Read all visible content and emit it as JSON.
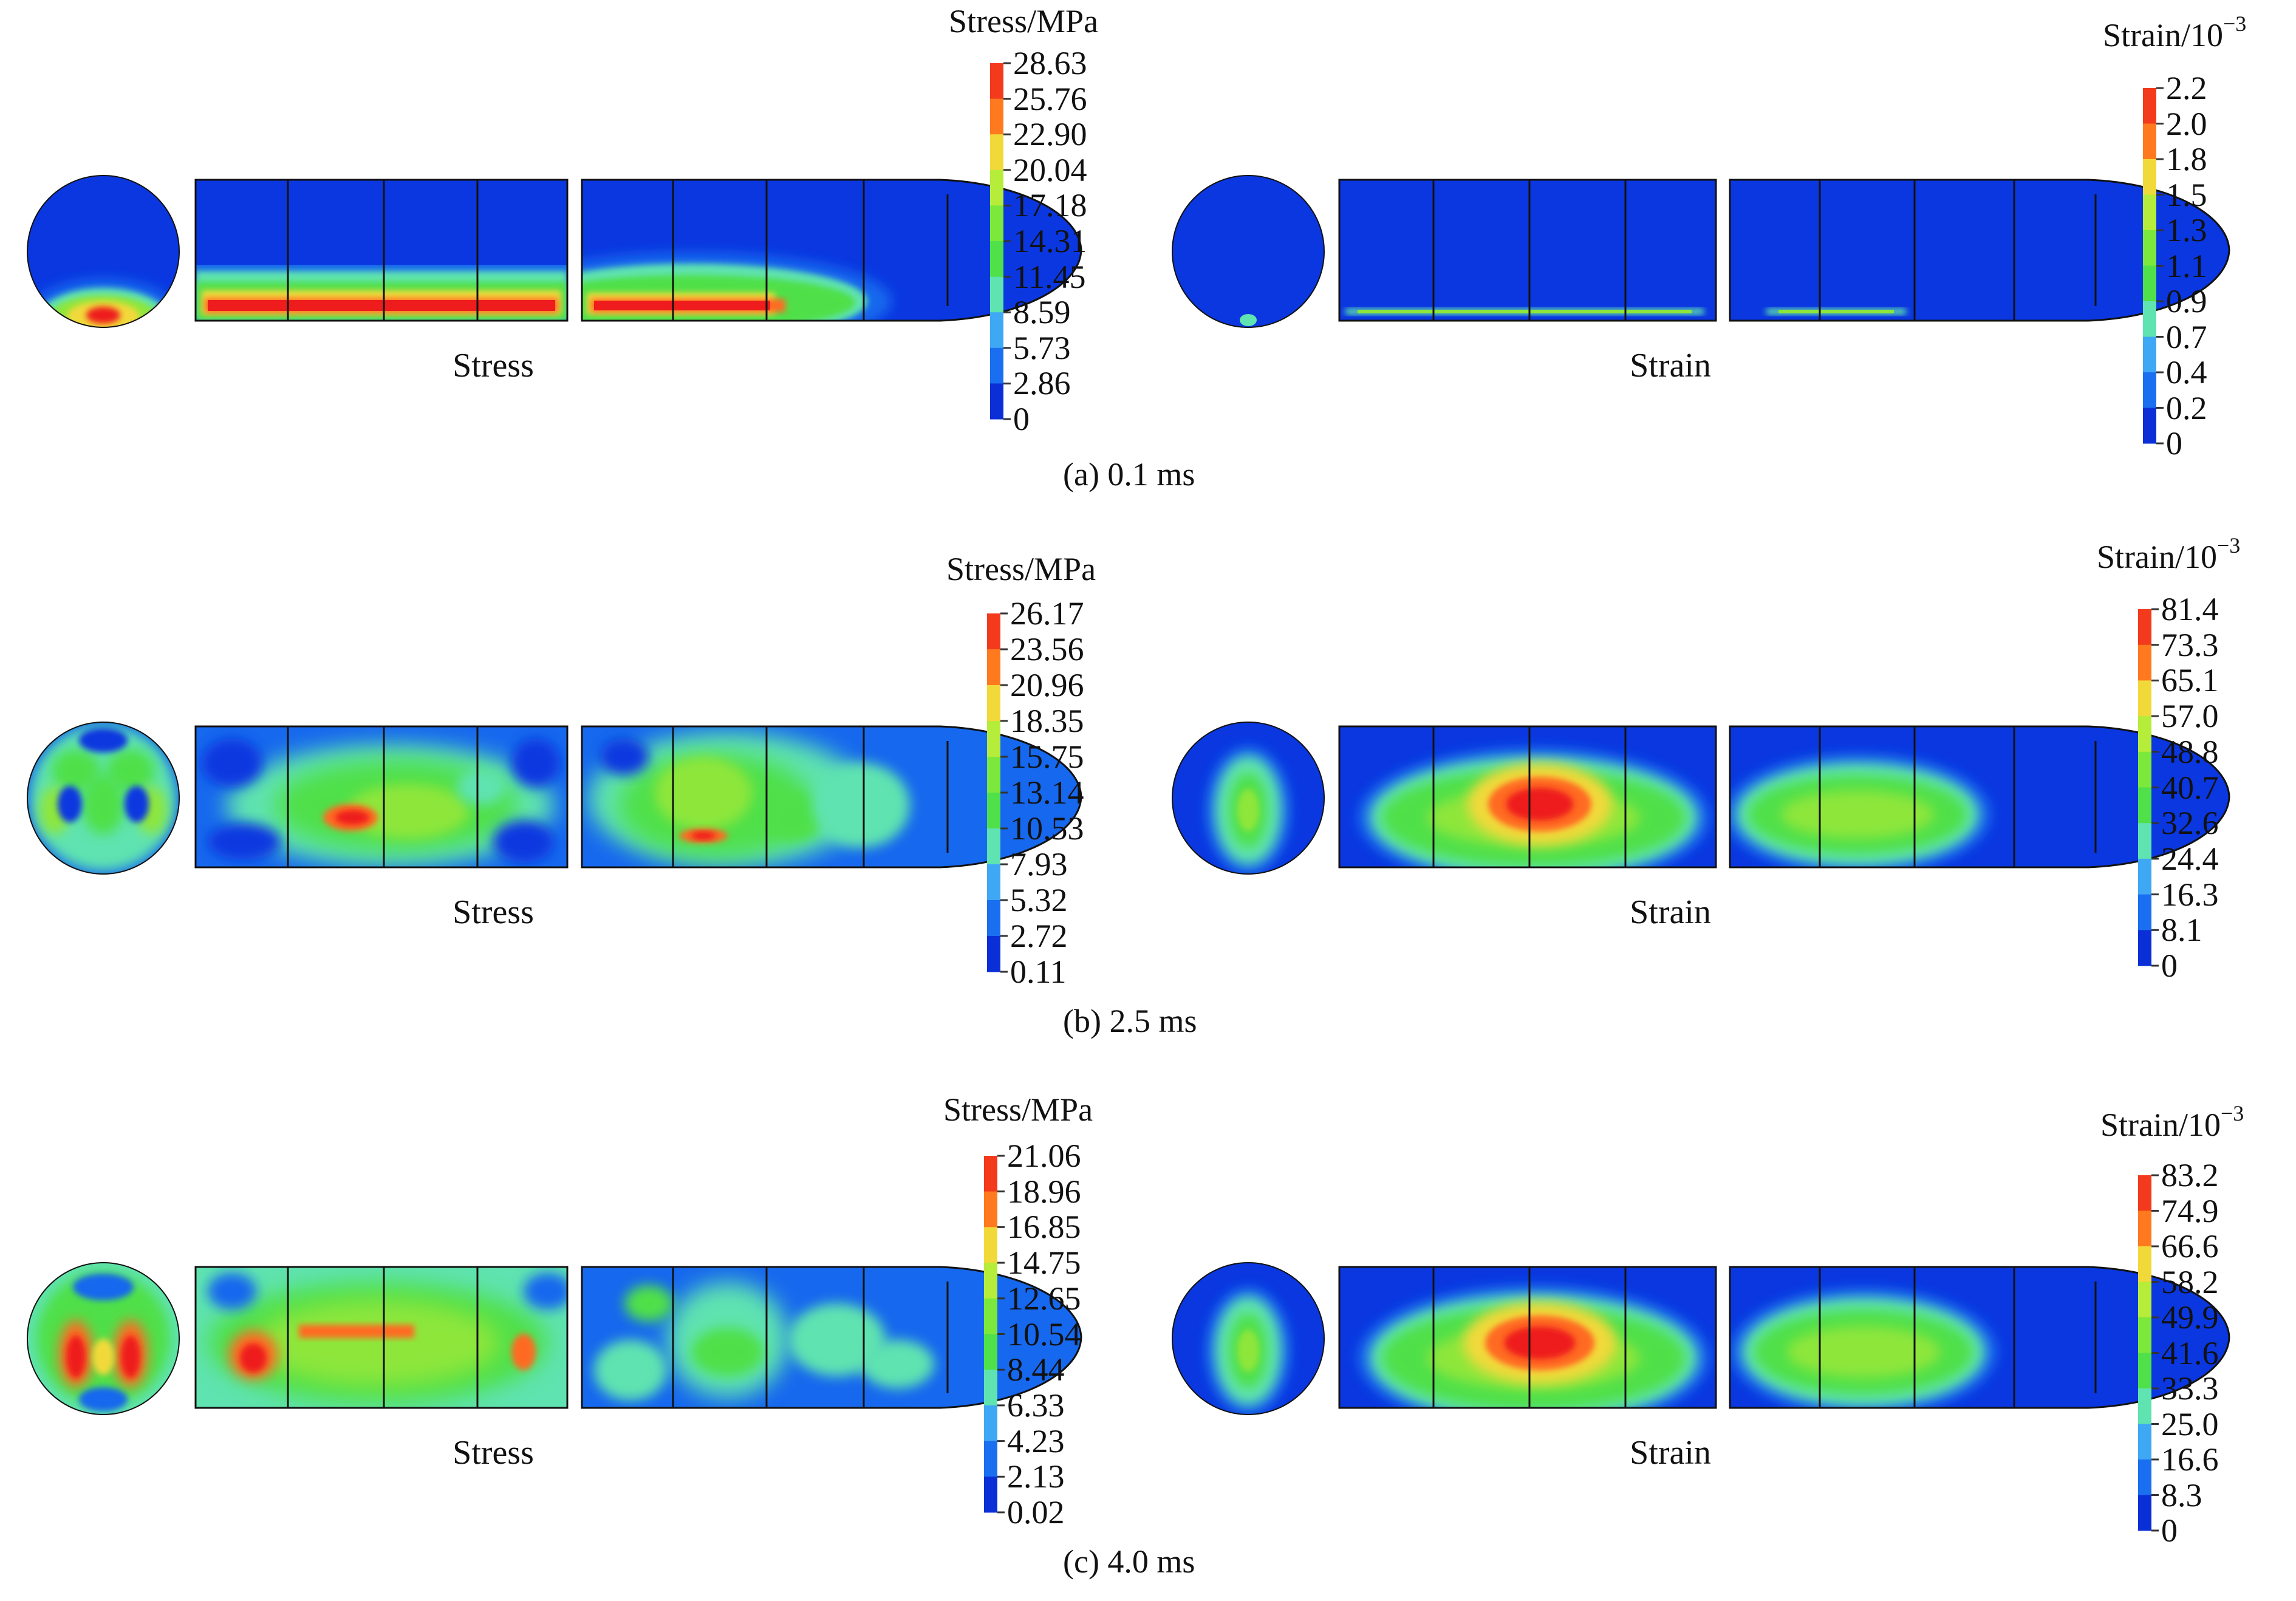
{
  "colors": {
    "blue": "#0a37e0",
    "blue2": "#1668ee",
    "cyan": "#5fe3b0",
    "green": "#4fe04a",
    "green2": "#8ee63a",
    "yellow": "#f2d93a",
    "orange": "#ff6a20",
    "red": "#ee1c1c",
    "outline": "#111111"
  },
  "legend_colors": [
    "#0a2fd6",
    "#1a6ff0",
    "#3fa8f5",
    "#5fe3b0",
    "#4fe04a",
    "#7de83c",
    "#b6ec3a",
    "#f2d93a",
    "#ff7a1e",
    "#f33a1c"
  ],
  "panels": [
    {
      "caption": "(a) 0.1 ms",
      "stress": {
        "label": "Stress",
        "legend_title": "Stress/MPa",
        "ticks": [
          "28.63",
          "25.76",
          "22.90",
          "20.04",
          "17.18",
          "14.31",
          "11.45",
          "8.59",
          "5.73",
          "2.86",
          "0"
        ]
      },
      "strain": {
        "label": "Strain",
        "legend_title_base": "Strain/10",
        "legend_title_exp": "−3",
        "ticks": [
          "2.2",
          "2.0",
          "1.8",
          "1.5",
          "1.3",
          "1.1",
          "0.9",
          "0.7",
          "0.4",
          "0.2",
          "0"
        ]
      }
    },
    {
      "caption": "(b) 2.5 ms",
      "stress": {
        "label": "Stress",
        "legend_title": "Stress/MPa",
        "ticks": [
          "26.17",
          "23.56",
          "20.96",
          "18.35",
          "15.75",
          "13.14",
          "10.53",
          "7.93",
          "5.32",
          "2.72",
          "0.11"
        ]
      },
      "strain": {
        "label": "Strain",
        "legend_title_base": "Strain/10",
        "legend_title_exp": "−3",
        "ticks": [
          "81.4",
          "73.3",
          "65.1",
          "57.0",
          "48.8",
          "40.7",
          "32.6",
          "24.4",
          "16.3",
          "8.1",
          "0"
        ]
      }
    },
    {
      "caption": "(c) 4.0 ms",
      "stress": {
        "label": "Stress",
        "legend_title": "Stress/MPa",
        "ticks": [
          "21.06",
          "18.96",
          "16.85",
          "14.75",
          "12.65",
          "10.54",
          "8.44",
          "6.33",
          "4.23",
          "2.13",
          "0.02"
        ]
      },
      "strain": {
        "label": "Strain",
        "legend_title_base": "Strain/10",
        "legend_title_exp": "−3",
        "ticks": [
          "83.2",
          "74.9",
          "66.6",
          "58.2",
          "49.9",
          "41.6",
          "33.3",
          "25.0",
          "16.6",
          "8.3",
          "0"
        ]
      }
    }
  ]
}
